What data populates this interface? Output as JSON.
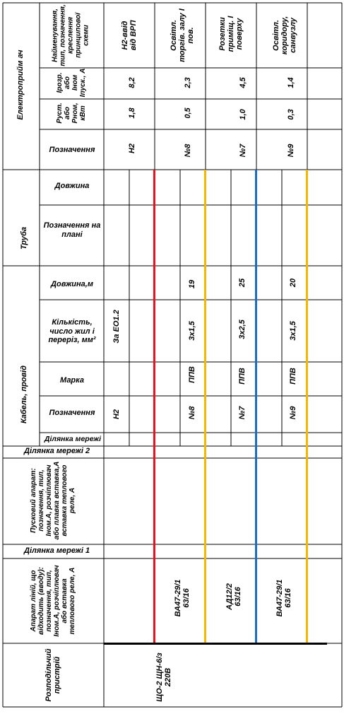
{
  "sections": {
    "receiver": "Електроприйм ач",
    "pipe": "Труба",
    "cable": "Кабель, провід",
    "network_section_2": "Ділянка мережі 2",
    "starter": "Пусковий апарат: позначення, тип, Iном.А, розчіплювач або плавка вставка,А вставка теплового реле, А",
    "network_section_1": "Ділянка мережі 1",
    "feeder_device": "Апарат ліній, що відходить (вводу): позначення, тип, Iном.А, розчіплювач або вставка теплового реле, А",
    "distribution_device": "Розподільчий пристрій"
  },
  "row_labels": {
    "name": "Найменування, тип, позначення, креслення принципової схеми",
    "current": "Iрозр. або Iном Iпуск., А",
    "power": "Руст. або Рном, кВт",
    "designation": "Позначення",
    "pipe_length": "Довжина",
    "pipe_plan": "Позначення на плані",
    "cable_length": "Довжина,м",
    "cable_count": "Кількість, число жил і переріз, мм²",
    "cable_brand": "Марка",
    "cable_designation": "Позначення",
    "network_section": "Ділянка мережі"
  },
  "columns": [
    {
      "name": "Н2-ввід від ВРП",
      "current": "8,2",
      "power": "1,8",
      "designation": "Н2",
      "cable_length": "",
      "cable_count": "За ЕО1.2",
      "cable_brand": "",
      "cable_designation": "Н2",
      "feeder": "",
      "line_color": ""
    },
    {
      "name": "Освітл. торгів. залу І пов.",
      "current": "2,3",
      "power": "0,5",
      "designation": "№8",
      "cable_length": "19",
      "cable_count": "3х1,5",
      "cable_brand": "ППВ",
      "cable_designation": "№8",
      "feeder": "ВА47-29/1 63/16",
      "line_color": "#f5b800"
    },
    {
      "name": "Розетки приміщ. І поверху",
      "current": "4,5",
      "power": "1,0",
      "designation": "№7",
      "cable_length": "25",
      "cable_count": "3х2,5",
      "cable_brand": "ППВ",
      "cable_designation": "№7",
      "feeder": "АД12/2 63/16",
      "line_color": "#1a6fc4"
    },
    {
      "name": "Освітл. коридору, санвузлу",
      "current": "1,4",
      "power": "0,3",
      "designation": "№9",
      "cable_length": "20",
      "cable_count": "3х1,5",
      "cable_brand": "ППВ",
      "cable_designation": "№9",
      "feeder": "ВА47-29/1 63/16",
      "line_color": "#f5b800"
    }
  ],
  "input_line_color": "#e8141a",
  "distribution": "ЩО-2 ЩН-6/з 220В"
}
